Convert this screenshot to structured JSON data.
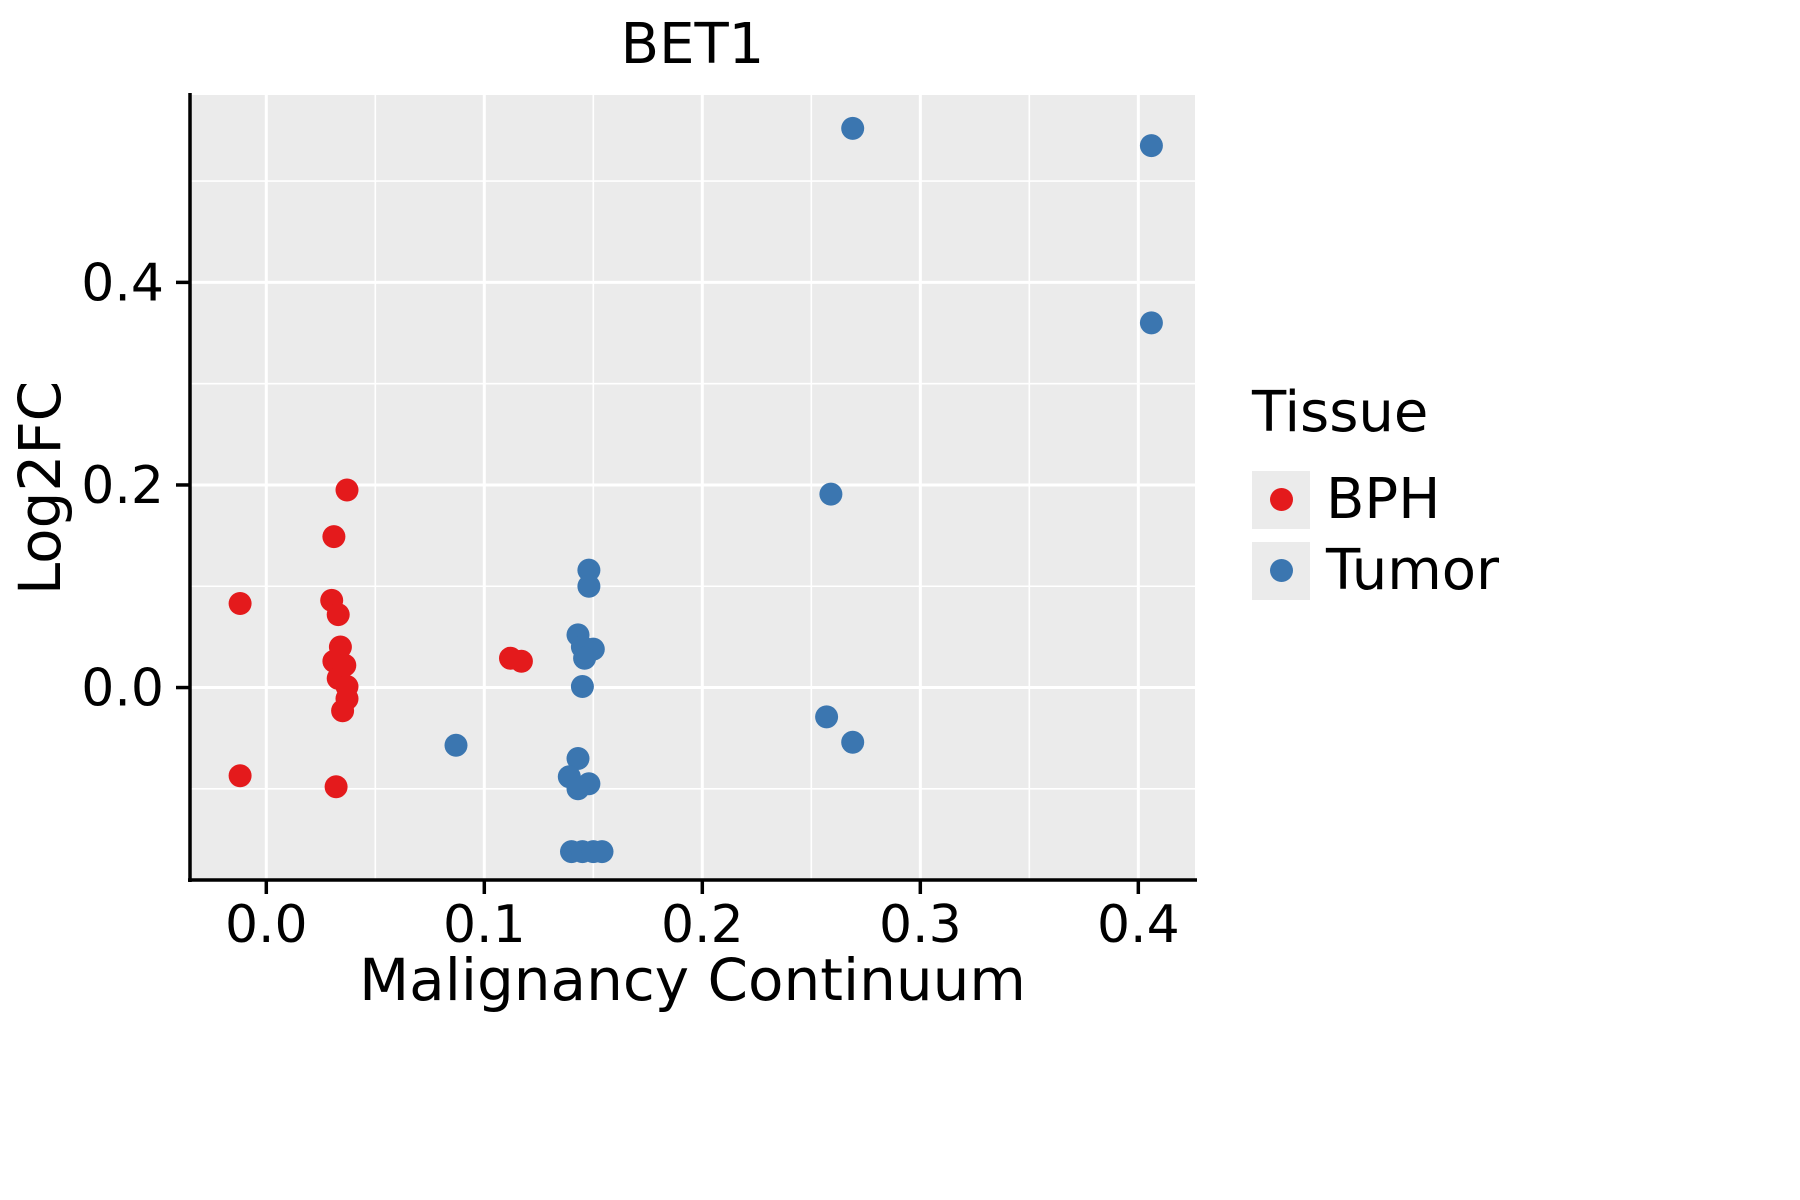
{
  "chart_data": {
    "type": "scatter",
    "title": "BET1",
    "xlabel": "Malignancy Continuum",
    "ylabel": "Log2FC",
    "legend_title": "Tissue",
    "legend_position": "right",
    "grid": true,
    "panel_bg": "#EBEBEB",
    "grid_color": "#FFFFFF",
    "axis_color": "#000000",
    "xlim": [
      -0.035,
      0.426
    ],
    "ylim": [
      -0.19,
      0.585
    ],
    "x_ticks": [
      0.0,
      0.1,
      0.2,
      0.3,
      0.4
    ],
    "x_tick_labels": [
      "0.0",
      "0.1",
      "0.2",
      "0.3",
      "0.4"
    ],
    "y_ticks": [
      0.0,
      0.2,
      0.4
    ],
    "y_tick_labels": [
      "0.0",
      "0.2",
      "0.4"
    ],
    "x_minor_ticks": [
      0.05,
      0.15,
      0.25,
      0.35
    ],
    "y_minor_ticks": [
      -0.1,
      0.1,
      0.3,
      0.5
    ],
    "series": [
      {
        "name": "BPH",
        "color": "#E41A1C",
        "points": [
          [
            -0.012,
            0.083
          ],
          [
            -0.012,
            -0.087
          ],
          [
            0.037,
            0.195
          ],
          [
            0.031,
            0.149
          ],
          [
            0.03,
            0.086
          ],
          [
            0.033,
            0.072
          ],
          [
            0.034,
            0.04
          ],
          [
            0.031,
            0.026
          ],
          [
            0.036,
            0.022
          ],
          [
            0.033,
            0.009
          ],
          [
            0.037,
            0.001
          ],
          [
            0.037,
            -0.011
          ],
          [
            0.035,
            -0.023
          ],
          [
            0.032,
            -0.098
          ],
          [
            0.112,
            0.029
          ],
          [
            0.117,
            0.026
          ]
        ]
      },
      {
        "name": "Tumor",
        "color": "#3B76B0",
        "points": [
          [
            0.269,
            0.552
          ],
          [
            0.406,
            0.535
          ],
          [
            0.406,
            0.36
          ],
          [
            0.259,
            0.191
          ],
          [
            0.148,
            0.116
          ],
          [
            0.148,
            0.1
          ],
          [
            0.143,
            0.052
          ],
          [
            0.145,
            0.04
          ],
          [
            0.15,
            0.038
          ],
          [
            0.146,
            0.029
          ],
          [
            0.145,
            0.001
          ],
          [
            0.257,
            -0.029
          ],
          [
            0.269,
            -0.054
          ],
          [
            0.087,
            -0.057
          ],
          [
            0.143,
            -0.07
          ],
          [
            0.139,
            -0.088
          ],
          [
            0.148,
            -0.095
          ],
          [
            0.143,
            -0.1
          ],
          [
            0.14,
            -0.162
          ],
          [
            0.145,
            -0.162
          ],
          [
            0.15,
            -0.162
          ],
          [
            0.154,
            -0.162
          ]
        ]
      }
    ]
  }
}
